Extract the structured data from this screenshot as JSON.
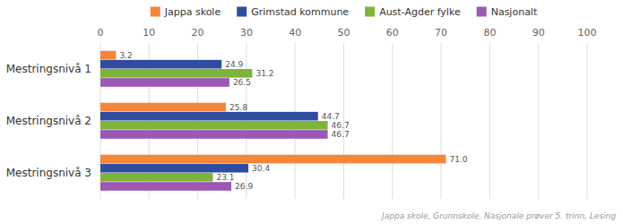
{
  "chart_data": {
    "type": "bar",
    "orientation": "horizontal",
    "categories": [
      "Mestringsnivå 1",
      "Mestringsnivå 2",
      "Mestringsnivå 3"
    ],
    "series": [
      {
        "name": "Jappa skole",
        "color": "#F4863A",
        "values": [
          3.2,
          25.8,
          71.0
        ],
        "value_labels": [
          "3.2",
          "25.8",
          "71.0"
        ]
      },
      {
        "name": "Grimstad kommune",
        "color": "#2E4DA0",
        "values": [
          24.9,
          44.7,
          30.4
        ]
      },
      {
        "name": "Aust-Agder fylke",
        "color": "#7DB53A",
        "values": [
          31.2,
          46.7,
          23.1
        ]
      },
      {
        "name": "Nasjonalt",
        "color": "#9B59B6",
        "values": [
          26.5,
          46.7,
          26.9
        ]
      }
    ],
    "xlim": [
      0,
      100
    ],
    "xticks": [
      0,
      10,
      20,
      30,
      40,
      50,
      60,
      70,
      80,
      90,
      100
    ],
    "grid": true,
    "data_labels": true,
    "legend": "top",
    "annotations": [
      "Jappa skole, Grunnskole, Nasjonale prøver 5. trinn, Lesing"
    ]
  }
}
